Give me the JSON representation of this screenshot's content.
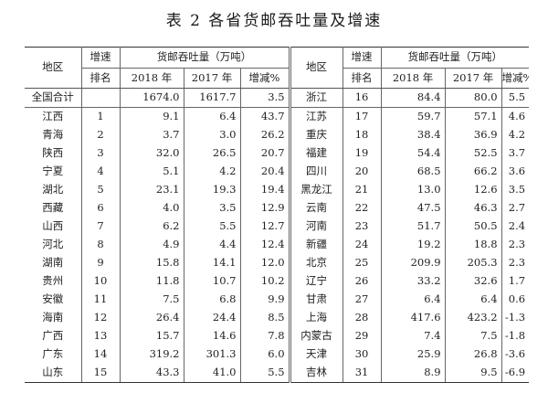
{
  "title": "表 2  各省货邮吞吐量及增速",
  "header": {
    "region": "地区",
    "growth_top": "增速",
    "rank": "排名",
    "throughput": "货邮吞吐量（万吨）",
    "y2018": "2018 年",
    "y2017": "2017 年",
    "change": "增减%"
  },
  "rows_left": [
    {
      "region": "全国合计",
      "rank": "",
      "v2018": "1674.0",
      "v2017": "1617.7",
      "change": "3.5"
    },
    {
      "region": "江西",
      "rank": "1",
      "v2018": "9.1",
      "v2017": "6.4",
      "change": "43.7"
    },
    {
      "region": "青海",
      "rank": "2",
      "v2018": "3.7",
      "v2017": "3.0",
      "change": "26.2"
    },
    {
      "region": "陕西",
      "rank": "3",
      "v2018": "32.0",
      "v2017": "26.5",
      "change": "20.7"
    },
    {
      "region": "宁夏",
      "rank": "4",
      "v2018": "5.1",
      "v2017": "4.2",
      "change": "20.4"
    },
    {
      "region": "湖北",
      "rank": "5",
      "v2018": "23.1",
      "v2017": "19.3",
      "change": "19.4"
    },
    {
      "region": "西藏",
      "rank": "6",
      "v2018": "4.0",
      "v2017": "3.5",
      "change": "12.9"
    },
    {
      "region": "山西",
      "rank": "7",
      "v2018": "6.2",
      "v2017": "5.5",
      "change": "12.7"
    },
    {
      "region": "河北",
      "rank": "8",
      "v2018": "4.9",
      "v2017": "4.4",
      "change": "12.4"
    },
    {
      "region": "湖南",
      "rank": "9",
      "v2018": "15.8",
      "v2017": "14.1",
      "change": "12.0"
    },
    {
      "region": "贵州",
      "rank": "10",
      "v2018": "11.8",
      "v2017": "10.7",
      "change": "10.2"
    },
    {
      "region": "安徽",
      "rank": "11",
      "v2018": "7.5",
      "v2017": "6.8",
      "change": "9.9"
    },
    {
      "region": "海南",
      "rank": "12",
      "v2018": "26.4",
      "v2017": "24.4",
      "change": "8.5"
    },
    {
      "region": "广西",
      "rank": "13",
      "v2018": "15.7",
      "v2017": "14.6",
      "change": "7.8"
    },
    {
      "region": "广东",
      "rank": "14",
      "v2018": "319.2",
      "v2017": "301.3",
      "change": "6.0"
    },
    {
      "region": "山东",
      "rank": "15",
      "v2018": "43.3",
      "v2017": "41.0",
      "change": "5.5"
    }
  ],
  "rows_right": [
    {
      "region": "浙江",
      "rank": "16",
      "v2018": "84.4",
      "v2017": "80.0",
      "change": "5.5"
    },
    {
      "region": "江苏",
      "rank": "17",
      "v2018": "59.7",
      "v2017": "57.1",
      "change": "4.6"
    },
    {
      "region": "重庆",
      "rank": "18",
      "v2018": "38.4",
      "v2017": "36.9",
      "change": "4.2"
    },
    {
      "region": "福建",
      "rank": "19",
      "v2018": "54.4",
      "v2017": "52.5",
      "change": "3.7"
    },
    {
      "region": "四川",
      "rank": "20",
      "v2018": "68.5",
      "v2017": "66.2",
      "change": "3.6"
    },
    {
      "region": "黑龙江",
      "rank": "21",
      "v2018": "13.0",
      "v2017": "12.6",
      "change": "3.5"
    },
    {
      "region": "云南",
      "rank": "22",
      "v2018": "47.5",
      "v2017": "46.3",
      "change": "2.7"
    },
    {
      "region": "河南",
      "rank": "23",
      "v2018": "51.7",
      "v2017": "50.5",
      "change": "2.4"
    },
    {
      "region": "新疆",
      "rank": "24",
      "v2018": "19.2",
      "v2017": "18.8",
      "change": "2.3"
    },
    {
      "region": "北京",
      "rank": "25",
      "v2018": "209.9",
      "v2017": "205.3",
      "change": "2.3"
    },
    {
      "region": "辽宁",
      "rank": "26",
      "v2018": "33.2",
      "v2017": "32.6",
      "change": "1.7"
    },
    {
      "region": "甘肃",
      "rank": "27",
      "v2018": "6.4",
      "v2017": "6.4",
      "change": "0.6"
    },
    {
      "region": "上海",
      "rank": "28",
      "v2018": "417.6",
      "v2017": "423.2",
      "change": "-1.3"
    },
    {
      "region": "内蒙古",
      "rank": "29",
      "v2018": "7.4",
      "v2017": "7.5",
      "change": "-1.8"
    },
    {
      "region": "天津",
      "rank": "30",
      "v2018": "25.9",
      "v2017": "26.8",
      "change": "-3.6"
    },
    {
      "region": "吉林",
      "rank": "31",
      "v2018": "8.9",
      "v2017": "9.5",
      "change": "-6.9"
    }
  ]
}
